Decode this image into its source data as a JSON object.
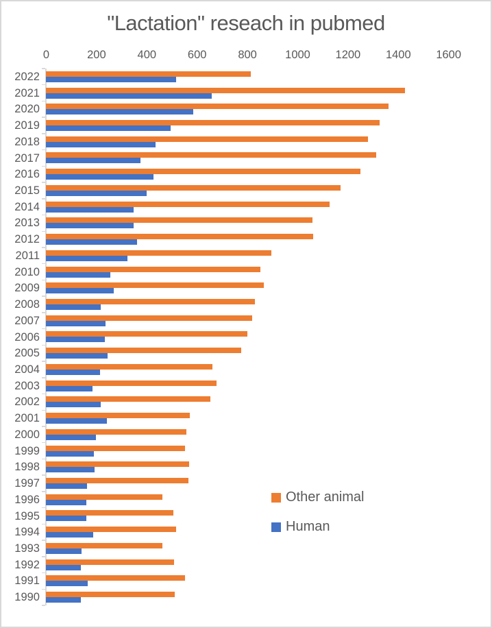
{
  "chart_data": {
    "type": "bar",
    "orientation": "horizontal",
    "title": "\"Lactation\" reseach in pubmed",
    "xlabel": "",
    "ylabel": "",
    "xlim": [
      0,
      1600
    ],
    "xticks": [
      0,
      200,
      400,
      600,
      800,
      1000,
      1200,
      1400,
      1600
    ],
    "grid": false,
    "legend_position": "inside-right",
    "axis_color": "#D9D9D9",
    "text_color": "#595959",
    "categories": [
      2022,
      2021,
      2020,
      2019,
      2018,
      2017,
      2016,
      2015,
      2014,
      2013,
      2012,
      2011,
      2010,
      2009,
      2008,
      2007,
      2006,
      2005,
      2004,
      2003,
      2002,
      2001,
      2000,
      1999,
      1998,
      1997,
      1996,
      1995,
      1994,
      1993,
      1992,
      1991,
      1990
    ],
    "series": [
      {
        "name": "Other animal",
        "color": "#ED7D31",
        "values": [
          815,
          1428,
          1362,
          1327,
          1280,
          1313,
          1251,
          1172,
          1127,
          1061,
          1063,
          896,
          853,
          867,
          832,
          821,
          801,
          776,
          661,
          679,
          655,
          573,
          559,
          553,
          570,
          568,
          464,
          508,
          517,
          464,
          510,
          552,
          513
        ]
      },
      {
        "name": "Human",
        "color": "#4472C4",
        "values": [
          517,
          660,
          585,
          497,
          436,
          377,
          429,
          400,
          349,
          350,
          362,
          323,
          257,
          271,
          217,
          237,
          233,
          246,
          216,
          186,
          219,
          243,
          198,
          191,
          194,
          164,
          161,
          161,
          187,
          143,
          138,
          166,
          140
        ]
      }
    ]
  }
}
